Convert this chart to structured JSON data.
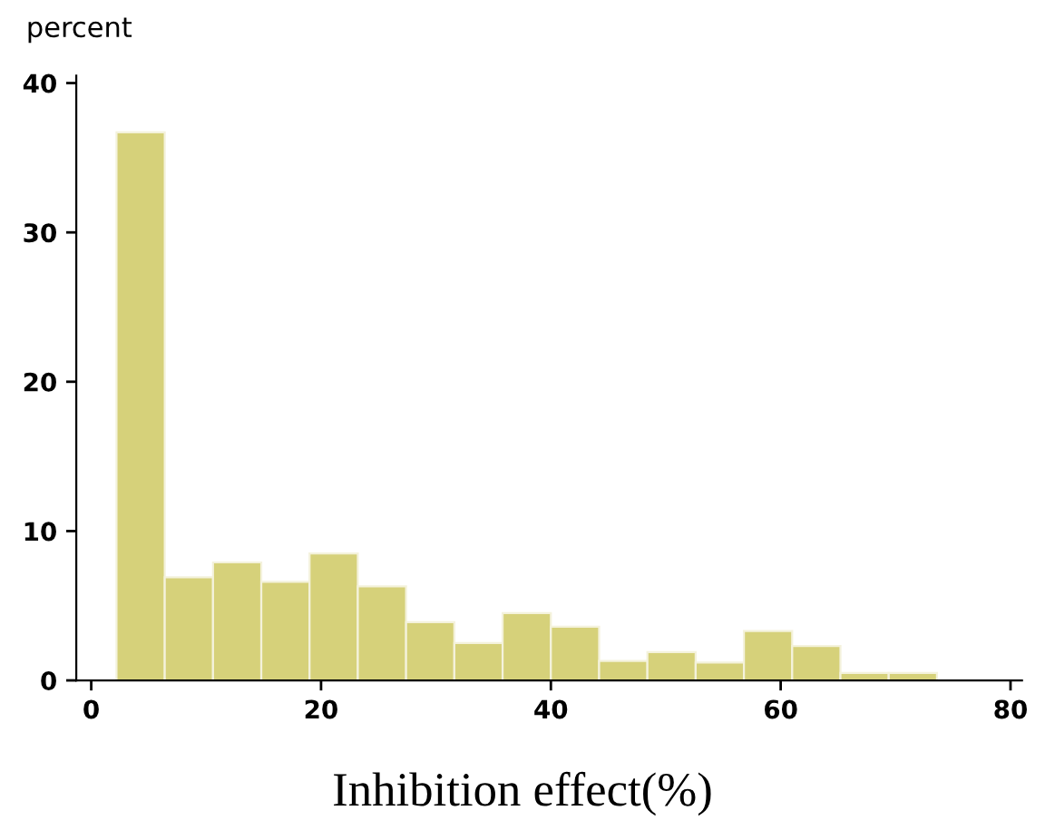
{
  "chart_data": {
    "type": "histogram",
    "ylabel": "percent",
    "xlabel": "Inhibition effect(%)",
    "bins": [
      2.2,
      6.4,
      10.6,
      14.8,
      19.0,
      23.2,
      27.4,
      31.6,
      35.8,
      40.0,
      44.2,
      48.4,
      52.6,
      56.8,
      61.0,
      65.2,
      69.4,
      73.6
    ],
    "values": [
      36.7,
      6.9,
      7.9,
      6.6,
      8.5,
      6.3,
      3.9,
      2.5,
      4.5,
      3.6,
      1.3,
      1.9,
      1.2,
      3.3,
      2.3,
      0.5,
      0.5
    ],
    "color": "#d6d17a",
    "xlim": [
      -1.3,
      81
    ],
    "xticks": [
      0,
      20,
      40,
      60,
      80
    ],
    "ylim": [
      0,
      40.5
    ],
    "yticks": [
      0,
      10,
      20,
      30,
      40
    ],
    "grid": false,
    "legend": false
  }
}
